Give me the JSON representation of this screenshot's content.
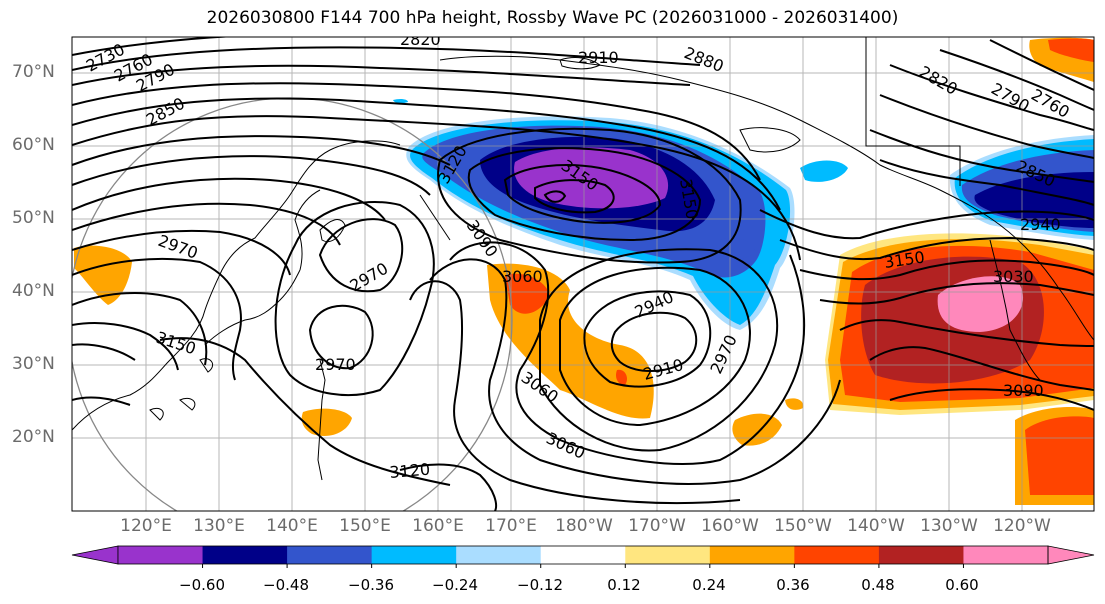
{
  "title": "2026030800 F144 700 hPa height, Rossby Wave PC (2026031000 - 2026031400)",
  "lat_labels": [
    "70°N",
    "60°N",
    "50°N",
    "40°N",
    "30°N",
    "20°N"
  ],
  "lon_labels": [
    "120°E",
    "130°E",
    "140°E",
    "150°E",
    "160°E",
    "170°E",
    "180°W",
    "170°W",
    "160°W",
    "150°W",
    "140°W",
    "130°W",
    "120°W"
  ],
  "contour_labels": [
    "2730",
    "2760",
    "2790",
    "2820",
    "2850",
    "2910",
    "2880",
    "2820",
    "2790",
    "2760",
    "2850",
    "2940",
    "2970",
    "2970",
    "3120",
    "3150",
    "3090",
    "3060",
    "3060",
    "3150",
    "2970",
    "2940",
    "2910",
    "2970",
    "3060",
    "3120",
    "3150",
    "3030",
    "3090",
    "3150"
  ],
  "colorbar": {
    "colors": [
      "#9933cc",
      "#000088",
      "#3355cc",
      "#00bbff",
      "#aaddff",
      "#ffffff",
      "#ffe680",
      "#ffa500",
      "#ff4400",
      "#b22222",
      "#ff88bb"
    ],
    "ticks": [
      "−0.60",
      "−0.48",
      "−0.36",
      "−0.24",
      "−0.12",
      "0.12",
      "0.24",
      "0.36",
      "0.48",
      "0.60"
    ]
  }
}
